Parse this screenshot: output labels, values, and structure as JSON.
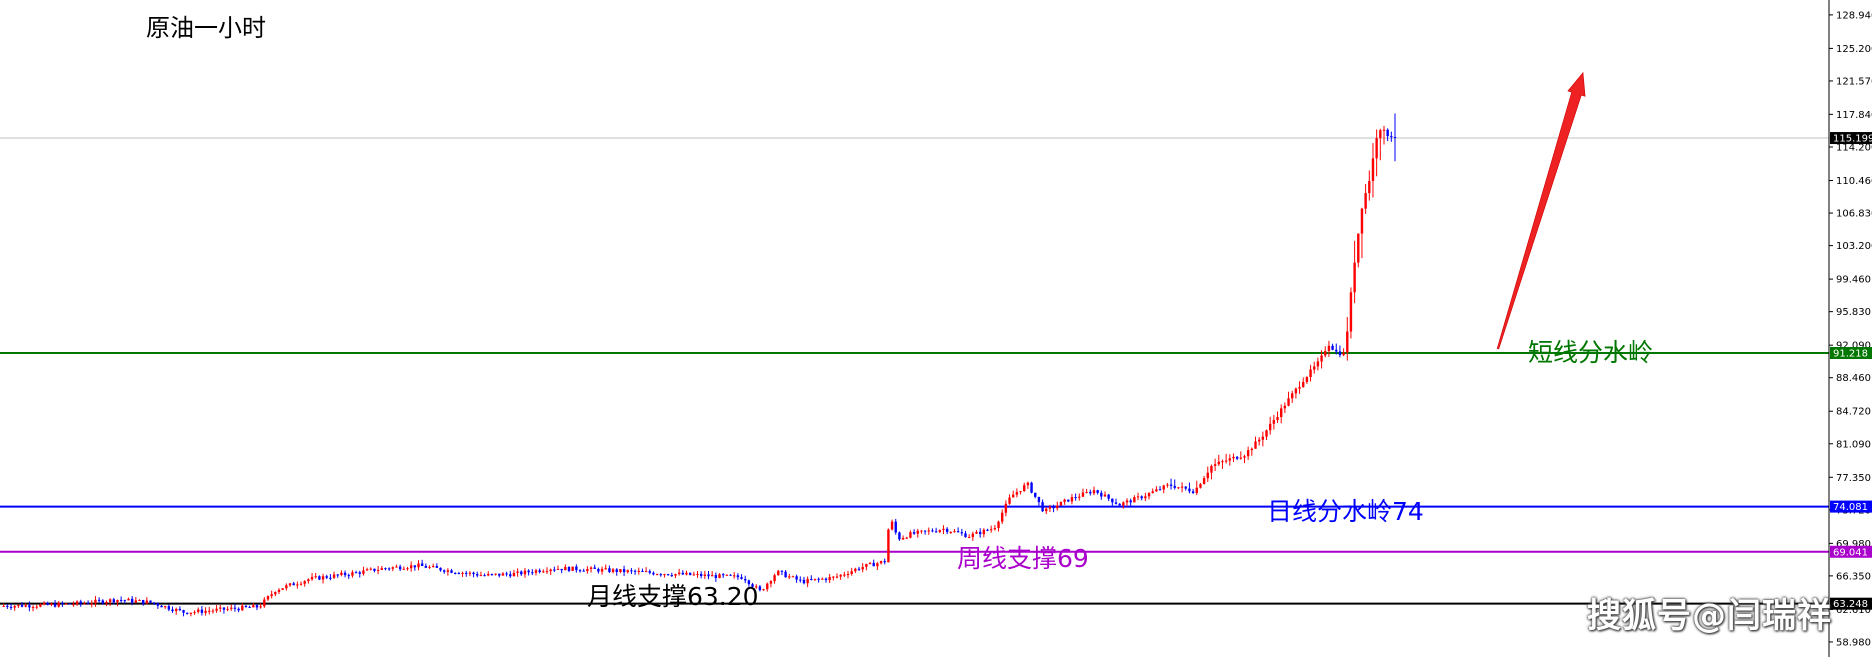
{
  "title": "原油一小时",
  "watermark": "搜狐号@闫瑞祥",
  "colors": {
    "bull": "#ff0000",
    "bear": "#0000ff",
    "green_line": "#007700",
    "blue_line": "#0000ff",
    "purple_line": "#aa00cc",
    "black_line": "#000000",
    "arrow": "#ee2222"
  },
  "chart_data": {
    "type": "candlestick",
    "title": "原油一小时",
    "ylim": [
      57.3,
      130.6
    ],
    "y_ticks": [
      "128.940",
      "125.200",
      "121.570",
      "117.840",
      "114.200",
      "110.460",
      "106.830",
      "103.200",
      "99.460",
      "95.830",
      "92.090",
      "88.460",
      "84.720",
      "81.090",
      "77.350",
      "73.720",
      "69.980",
      "66.350",
      "62.610",
      "58.980"
    ],
    "current_price": {
      "value": 115.199,
      "label": "115.199"
    },
    "levels": [
      {
        "name": "短线分水岭",
        "value": 91.218,
        "label": "91.218",
        "color": "#007700"
      },
      {
        "name": "日线分水岭74",
        "value": 74.081,
        "label": "74.081",
        "color": "#0000ff"
      },
      {
        "name": "周线支撑69",
        "value": 69.041,
        "label": "69.041",
        "color": "#aa00cc"
      },
      {
        "name": "月线支撑63.20",
        "value": 63.248,
        "label": "63.248",
        "color": "#000000"
      }
    ],
    "annotations": [
      {
        "text": "短线分水岭",
        "color": "#007700"
      },
      {
        "text": "日线分水岭74",
        "color": "#0000ff"
      },
      {
        "text": "周线支撑69",
        "color": "#aa00cc"
      },
      {
        "text": "月线支撑63.20",
        "color": "#000000"
      }
    ],
    "path_points": [
      [
        0,
        63.0
      ],
      [
        6,
        63.1
      ],
      [
        10,
        63.3
      ],
      [
        14,
        63.7
      ],
      [
        18,
        63.4
      ],
      [
        22,
        62.3
      ],
      [
        24,
        62.4
      ],
      [
        28,
        62.7
      ],
      [
        31,
        62.9
      ],
      [
        33,
        64.8
      ],
      [
        37,
        66.0
      ],
      [
        42,
        66.6
      ],
      [
        46,
        67.2
      ],
      [
        50,
        67.5
      ],
      [
        54,
        66.9
      ],
      [
        58,
        66.4
      ],
      [
        62,
        66.6
      ],
      [
        66,
        67.2
      ],
      [
        70,
        67.1
      ],
      [
        74,
        66.9
      ],
      [
        78,
        66.7
      ],
      [
        82,
        66.5
      ],
      [
        86,
        66.3
      ],
      [
        89,
        66.2
      ],
      [
        91,
        64.6
      ],
      [
        93,
        66.8
      ],
      [
        96,
        65.7
      ],
      [
        100,
        66.2
      ],
      [
        103,
        67.3
      ],
      [
        106,
        68.0
      ],
      [
        106.5,
        73.0
      ],
      [
        107.5,
        70.5
      ],
      [
        109,
        71.0
      ],
      [
        113,
        71.6
      ],
      [
        116,
        70.8
      ],
      [
        119,
        71.7
      ],
      [
        121,
        75.2
      ],
      [
        123,
        76.6
      ],
      [
        125,
        73.5
      ],
      [
        128,
        74.9
      ],
      [
        131,
        75.9
      ],
      [
        134,
        74.3
      ],
      [
        137,
        75.3
      ],
      [
        140,
        76.5
      ],
      [
        143,
        75.8
      ],
      [
        145,
        78.6
      ],
      [
        147,
        79.3
      ],
      [
        149,
        79.9
      ],
      [
        151,
        81.8
      ],
      [
        154,
        85.7
      ],
      [
        156,
        88.2
      ],
      [
        158,
        90.3
      ],
      [
        159,
        92.3
      ],
      [
        160,
        91.3
      ],
      [
        161,
        91.1
      ],
      [
        162,
        100.3
      ],
      [
        163,
        107.4
      ],
      [
        164,
        110.8
      ],
      [
        165,
        116.5
      ],
      [
        166,
        115.6
      ],
      [
        167,
        115.4
      ]
    ],
    "arrow": {
      "from_value": 91.7,
      "to_value": 122.5,
      "direction": "up"
    }
  }
}
